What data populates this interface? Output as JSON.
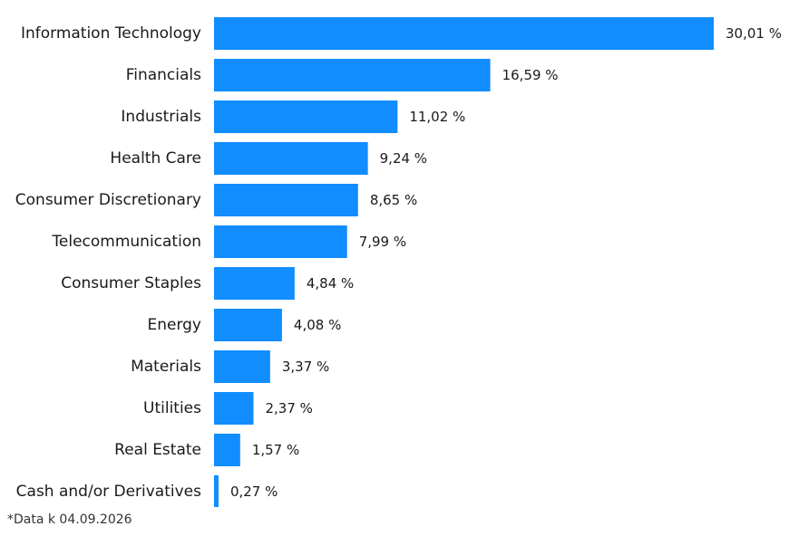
{
  "chart_data": {
    "type": "bar",
    "orientation": "horizontal",
    "categories": [
      "Information Technology",
      "Financials",
      "Industrials",
      "Health Care",
      "Consumer Discretionary",
      "Telecommunication",
      "Consumer Staples",
      "Energy",
      "Materials",
      "Utilities",
      "Real Estate",
      "Cash and/or Derivatives"
    ],
    "values": [
      30.01,
      16.59,
      11.02,
      9.24,
      8.65,
      7.99,
      4.84,
      4.08,
      3.37,
      2.37,
      1.57,
      0.27
    ],
    "value_labels": [
      "30,01 %",
      "16,59 %",
      "11,02 %",
      "9,24 %",
      "8,65 %",
      "7,99 %",
      "4,84 %",
      "4,08 %",
      "3,37 %",
      "2,37 %",
      "1,57 %",
      "0,27 %"
    ],
    "xlim": [
      0,
      30.01
    ],
    "grid": false,
    "legend": "none",
    "bar_color": "#118DFF"
  },
  "footnote": "*Data k 04.09.2026"
}
